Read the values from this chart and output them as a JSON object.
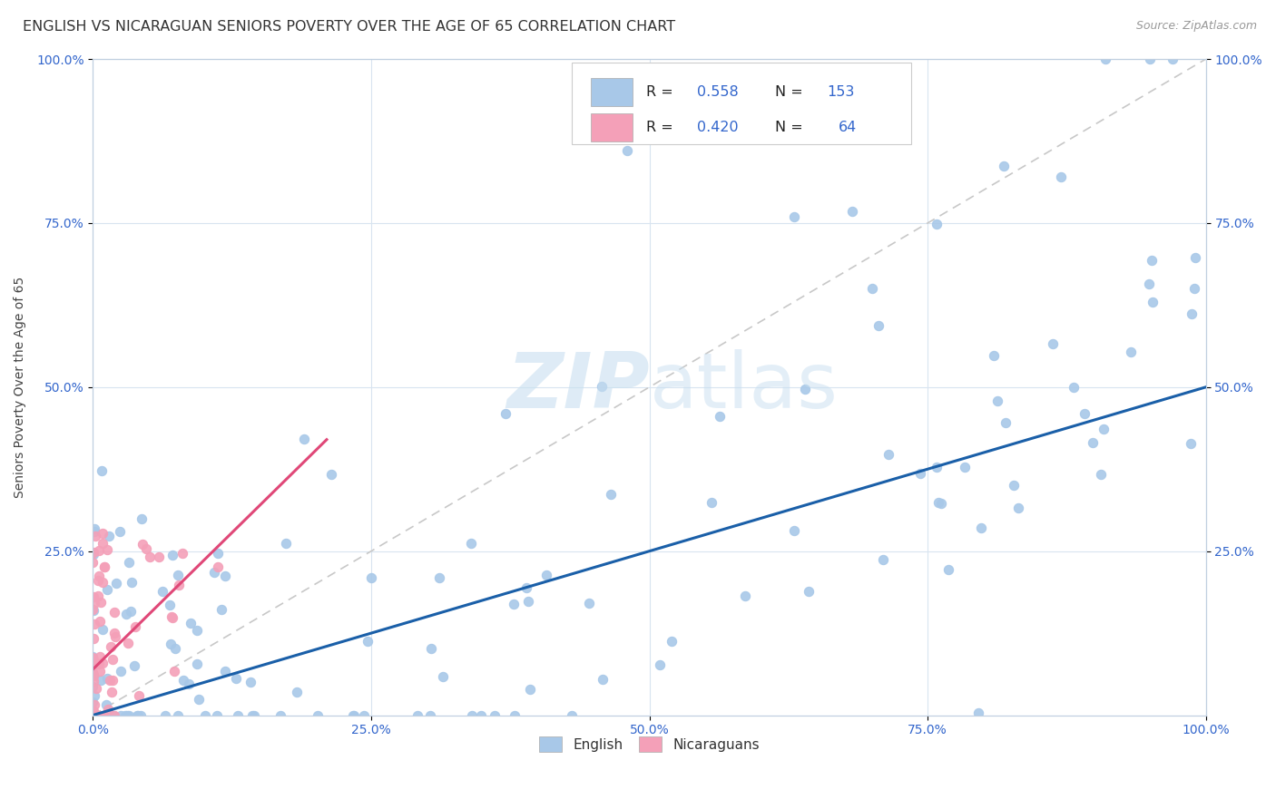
{
  "title": "ENGLISH VS NICARAGUAN SENIORS POVERTY OVER THE AGE OF 65 CORRELATION CHART",
  "source": "Source: ZipAtlas.com",
  "ylabel": "Seniors Poverty Over the Age of 65",
  "xlim": [
    0,
    1
  ],
  "ylim": [
    0,
    1
  ],
  "xtick_labels": [
    "0.0%",
    "25.0%",
    "50.0%",
    "75.0%",
    "100.0%"
  ],
  "xtick_vals": [
    0.0,
    0.25,
    0.5,
    0.75,
    1.0
  ],
  "ytick_labels": [
    "25.0%",
    "50.0%",
    "75.0%",
    "100.0%"
  ],
  "ytick_vals": [
    0.25,
    0.5,
    0.75,
    1.0
  ],
  "english_R": 0.558,
  "english_N": 153,
  "nicaraguan_R": 0.42,
  "nicaraguan_N": 64,
  "english_color": "#a8c8e8",
  "nicaraguan_color": "#f4a0b8",
  "english_line_color": "#1a5fa8",
  "nicaraguan_line_color": "#e04878",
  "dashed_line_color": "#c8c8c8",
  "legend_text_color": "#3366cc",
  "watermark_color": "#c8dff0",
  "background_color": "#ffffff",
  "grid_color": "#d8e4f0",
  "title_fontsize": 11.5,
  "source_fontsize": 9,
  "english_seed": 42,
  "nicaraguan_seed": 7,
  "eng_line_x": [
    0.0,
    1.0
  ],
  "eng_line_y": [
    0.0,
    0.5
  ],
  "nic_line_x": [
    0.0,
    0.21
  ],
  "nic_line_y": [
    0.07,
    0.42
  ]
}
